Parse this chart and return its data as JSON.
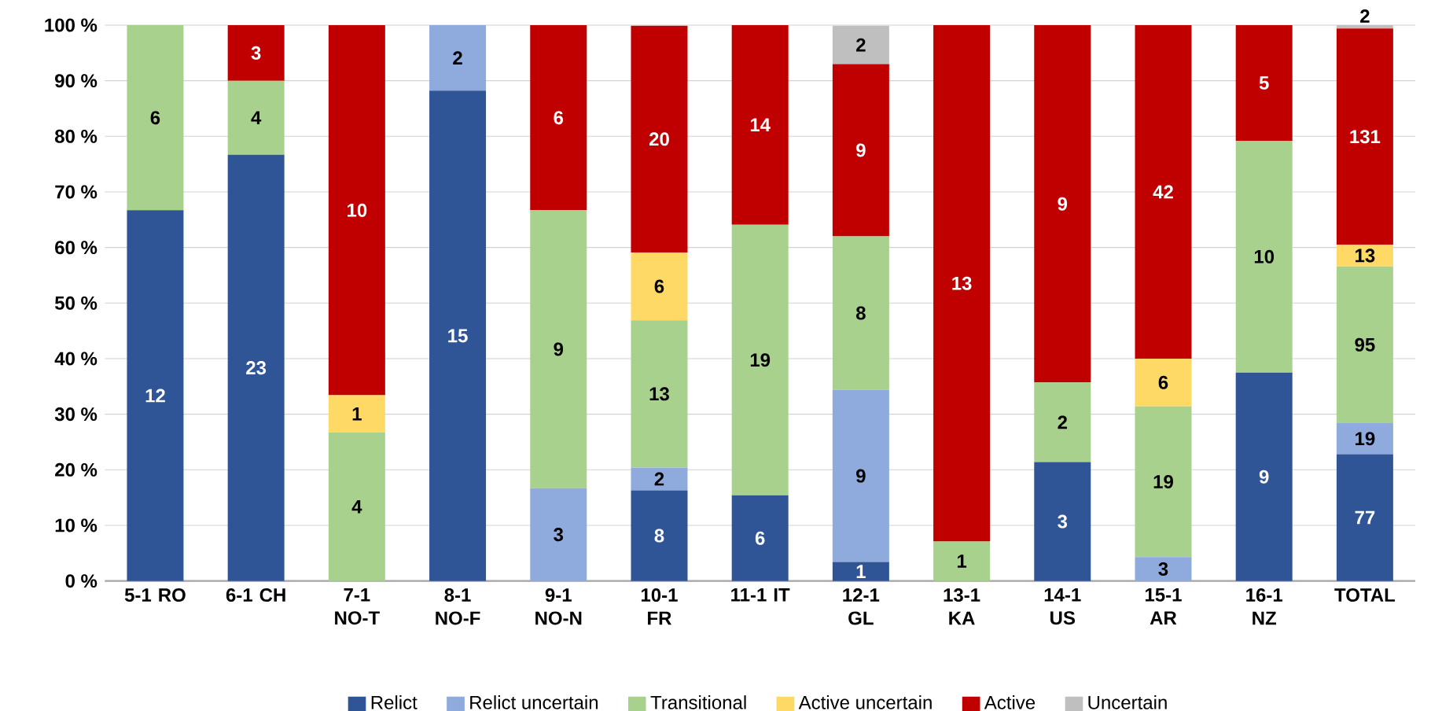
{
  "chart_data": {
    "type": "bar",
    "stacked": true,
    "categories": [
      "5-1 RO",
      "6-1 CH",
      "7-1 NO-T",
      "8-1 NO-F",
      "9-1 NO-N",
      "10-1 FR",
      "11-1 IT",
      "12-1 GL",
      "13-1 KA",
      "14-1 US",
      "15-1 AR",
      "16-1 NZ",
      "TOTAL"
    ],
    "series": [
      {
        "name": "Relict",
        "color": "#2f5597",
        "values": [
          66.7,
          76.7,
          0,
          88.2,
          0,
          16.3,
          15.4,
          3.4,
          0,
          21.4,
          0,
          37.5,
          22.8
        ]
      },
      {
        "name": "Relict uncertain",
        "color": "#8faadc",
        "values": [
          0,
          0,
          0,
          11.8,
          16.7,
          4.1,
          0,
          31.0,
          0,
          0,
          4.3,
          0,
          5.6
        ]
      },
      {
        "name": "Transitional",
        "color": "#a9d18e",
        "values": [
          33.3,
          13.3,
          26.7,
          0,
          50.0,
          26.5,
          48.7,
          27.6,
          7.1,
          14.3,
          27.1,
          41.7,
          28.2
        ]
      },
      {
        "name": "Active uncertain",
        "color": "#ffd966",
        "values": [
          0,
          0,
          6.7,
          0,
          0,
          12.2,
          0,
          0,
          0,
          0,
          8.6,
          0,
          3.9
        ]
      },
      {
        "name": "Active",
        "color": "#c00000",
        "values": [
          0,
          10.0,
          66.6,
          0,
          33.3,
          40.8,
          35.9,
          31.0,
          92.9,
          64.3,
          60.0,
          20.8,
          38.9
        ]
      },
      {
        "name": "Uncertain",
        "color": "#bfbfbf",
        "values": [
          0,
          0,
          0,
          0,
          0,
          0,
          0,
          6.9,
          0,
          0,
          0,
          0,
          0.6
        ]
      }
    ],
    "annotations": [
      "12",
      "6",
      "23",
      "4",
      "3",
      "4",
      "1",
      "10",
      "15",
      "2",
      "3",
      "9",
      "6",
      "8",
      "2",
      "13",
      "6",
      "20",
      "6",
      "19",
      "14",
      "1",
      "9",
      "8",
      "9",
      "2",
      "1",
      "13",
      "3",
      "2",
      "9",
      "3",
      "19",
      "6",
      "42",
      "9",
      "10",
      "5",
      "77",
      "19",
      "95",
      "13",
      "131",
      "2"
    ],
    "ylim": [
      0,
      100
    ],
    "yticks": [
      {
        "value": 0,
        "label": "0 %"
      },
      {
        "value": 10,
        "label": "10 %"
      },
      {
        "value": 20,
        "label": "20 %"
      },
      {
        "value": 30,
        "label": "30 %"
      },
      {
        "value": 40,
        "label": "40 %"
      },
      {
        "value": 50,
        "label": "50 %"
      },
      {
        "value": 60,
        "label": "60 %"
      },
      {
        "value": 70,
        "label": "70 %"
      },
      {
        "value": 80,
        "label": "80 %"
      },
      {
        "value": 90,
        "label": "90 %"
      },
      {
        "value": 100,
        "label": "100 %"
      }
    ],
    "grid": "y",
    "legend": "bottom"
  }
}
